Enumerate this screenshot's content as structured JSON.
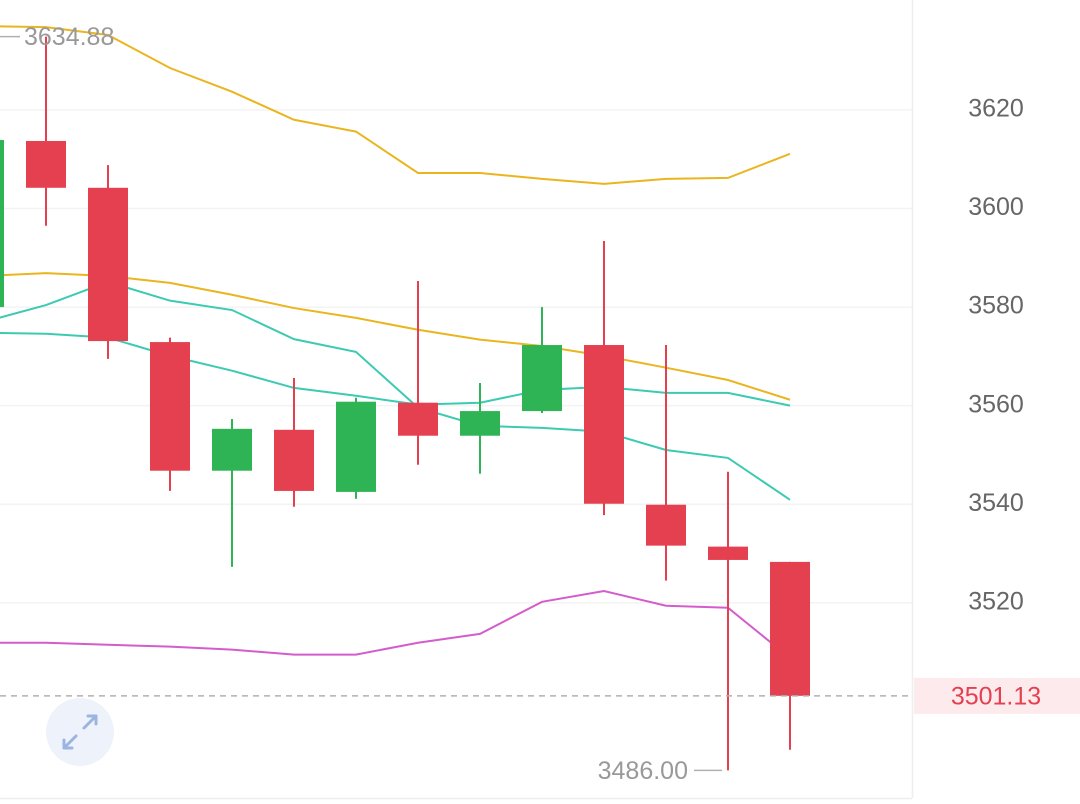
{
  "chart_data": {
    "type": "candlestick",
    "categories": [
      null,
      null,
      null,
      null,
      null,
      null,
      null,
      null,
      null,
      null,
      null,
      null,
      null,
      null
    ],
    "candles": {
      "open": [
        3580.0,
        3613.7,
        3604.2,
        3572.9,
        3546.8,
        3555.1,
        3542.5,
        3560.6,
        3553.9,
        3558.9,
        3572.3,
        3539.9,
        3531.4,
        3528.3
      ],
      "high": [
        null,
        3634.88,
        3608.8,
        3573.8,
        3557.3,
        3565.6,
        3561.6,
        3585.3,
        3564.6,
        3580.0,
        3593.4,
        3572.3,
        3546.6,
        3528.3
      ],
      "low": [
        null,
        3596.5,
        3569.5,
        3542.7,
        3527.3,
        3539.5,
        3541.1,
        3548.0,
        3546.2,
        3558.5,
        3537.8,
        3524.5,
        3486,
        3490.2
      ],
      "close": [
        3613.9,
        3604.2,
        3573.1,
        3546.8,
        3555.3,
        3542.7,
        3560.8,
        3553.9,
        3558.9,
        3572.3,
        3540.1,
        3531.6,
        3528.7,
        3501.13
      ],
      "up_color": "#2fb455",
      "down_color": "#e5404f"
    },
    "lines": [
      {
        "color": "#eab51e",
        "values": [
          3637.0,
          3636.8,
          3635.2,
          3628.5,
          3623.7,
          3618.0,
          3615.6,
          3607.2,
          3607.2,
          3606.0,
          3605.0,
          3606.0,
          3606.2,
          3611.1
        ]
      },
      {
        "color": "#eab51e",
        "values": [
          3586.3,
          3586.9,
          3586.3,
          3584.9,
          3582.5,
          3579.8,
          3577.8,
          3575.4,
          3573.4,
          3572.1,
          3570.1,
          3567.7,
          3565.2,
          3561.2
        ]
      },
      {
        "color": "#3ccab2",
        "values": [
          3577.0,
          3580.4,
          3585.1,
          3581.3,
          3579.4,
          3573.5,
          3570.9,
          3559.6,
          3555.9,
          3555.5,
          3554.7,
          3551.0,
          3549.4,
          3540.9
        ]
      },
      {
        "color": "#3ccab2",
        "values": [
          3574.8,
          3574.6,
          3573.8,
          3570.1,
          3567.1,
          3563.6,
          3562.0,
          3560.2,
          3560.6,
          3563.2,
          3563.8,
          3562.6,
          3562.6,
          3560.0
        ]
      },
      {
        "color": "#d45ccb",
        "values": [
          3511.9,
          3511.9,
          3511.5,
          3511.1,
          3510.5,
          3509.5,
          3509.5,
          3511.9,
          3513.7,
          3520.2,
          3522.4,
          3519.4,
          3519.0,
          3508.8
        ]
      }
    ],
    "ylim": [
      3480.4,
      3642.3
    ],
    "yticks": [
      3520,
      3540,
      3560,
      3580,
      3600,
      3620
    ],
    "grid": true,
    "max_label": {
      "value": 3634.88,
      "label": "3634.88"
    },
    "min_label": {
      "value": 3486,
      "label": "3486.00"
    },
    "last_price": {
      "value": 3501.13,
      "label": "3501.13"
    }
  }
}
